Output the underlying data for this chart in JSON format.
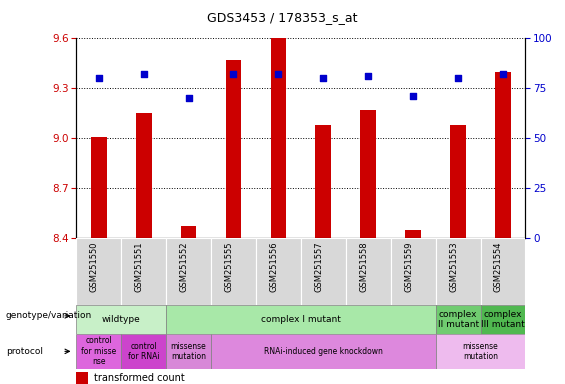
{
  "title": "GDS3453 / 178353_s_at",
  "samples": [
    "GSM251550",
    "GSM251551",
    "GSM251552",
    "GSM251555",
    "GSM251556",
    "GSM251557",
    "GSM251558",
    "GSM251559",
    "GSM251553",
    "GSM251554"
  ],
  "transformed_count": [
    9.01,
    9.15,
    8.47,
    9.47,
    9.6,
    9.08,
    9.17,
    8.45,
    9.08,
    9.4
  ],
  "percentile_rank": [
    80,
    82,
    70,
    82,
    82,
    80,
    81,
    71,
    80,
    82
  ],
  "ylim_left": [
    8.4,
    9.6
  ],
  "ylim_right": [
    0,
    100
  ],
  "yticks_left": [
    8.4,
    8.7,
    9.0,
    9.3,
    9.6
  ],
  "yticks_right": [
    0,
    25,
    50,
    75,
    100
  ],
  "bar_color": "#cc0000",
  "dot_color": "#0000cc",
  "bar_width": 0.35,
  "bar_bottom": 8.4,
  "geno_groups": [
    {
      "cols": [
        0,
        1
      ],
      "color": "#c8f0c8",
      "label": "wildtype"
    },
    {
      "cols": [
        2,
        3,
        4,
        5,
        6,
        7
      ],
      "color": "#a8e8a8",
      "label": "complex I mutant"
    },
    {
      "cols": [
        8
      ],
      "color": "#70cc70",
      "label": "complex\nII mutant"
    },
    {
      "cols": [
        9
      ],
      "color": "#50b850",
      "label": "complex\nIII mutant"
    }
  ],
  "proto_groups": [
    {
      "cols": [
        0
      ],
      "color": "#dd66dd",
      "label": "control\nfor misse\nnse"
    },
    {
      "cols": [
        1
      ],
      "color": "#cc44cc",
      "label": "control\nfor RNAi"
    },
    {
      "cols": [
        2
      ],
      "color": "#d888d8",
      "label": "missense\nmutation"
    },
    {
      "cols": [
        3,
        4,
        5,
        6,
        7
      ],
      "color": "#dd88dd",
      "label": "RNAi-induced gene knockdown"
    },
    {
      "cols": [
        8,
        9
      ],
      "color": "#eebbee",
      "label": "missense\nmutation"
    }
  ],
  "tick_color_left": "#cc0000",
  "tick_color_right": "#0000cc",
  "sample_box_color": "#d8d8d8"
}
